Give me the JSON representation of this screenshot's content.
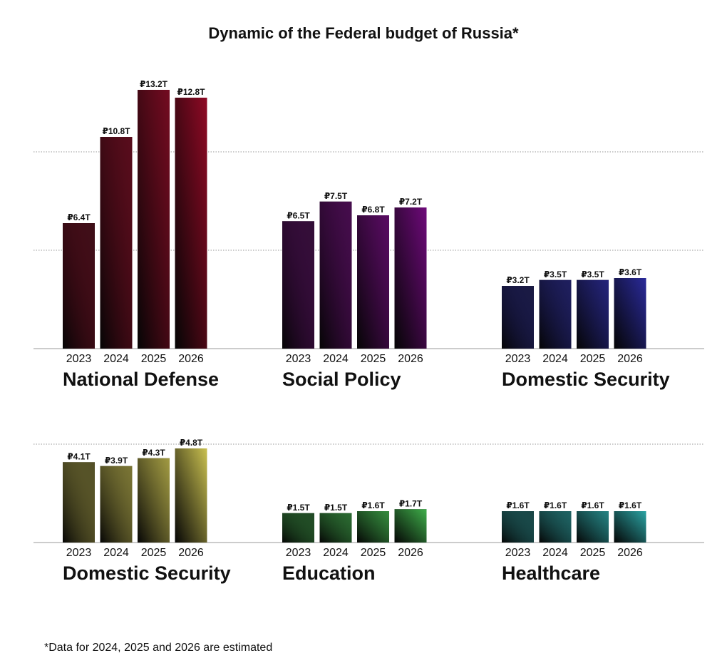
{
  "title": "Dynamic of the Federal budget of Russia*",
  "footnote": "*Data for 2024, 2025 and 2026 are estimated",
  "chart_data": [
    {
      "type": "bar",
      "title": "National Defense",
      "categories": [
        "2023",
        "2024",
        "2025",
        "2026"
      ],
      "values": [
        6.4,
        10.8,
        13.2,
        12.8
      ],
      "value_labels": [
        "₽6.4T",
        "₽10.8T",
        "₽13.2T",
        "₽12.8T"
      ],
      "unit": "₽ trillion",
      "color": "#8f0a25"
    },
    {
      "type": "bar",
      "title": "Social Policy",
      "categories": [
        "2023",
        "2024",
        "2025",
        "2026"
      ],
      "values": [
        6.5,
        7.5,
        6.8,
        7.2
      ],
      "value_labels": [
        "₽6.5T",
        "₽7.5T",
        "₽6.8T",
        "₽7.2T"
      ],
      "unit": "₽ trillion",
      "color": "#6e0a7a"
    },
    {
      "type": "bar",
      "title": "Domestic Security",
      "categories": [
        "2023",
        "2024",
        "2025",
        "2026"
      ],
      "values": [
        3.2,
        3.5,
        3.5,
        3.6
      ],
      "value_labels": [
        "₽3.2T",
        "₽3.5T",
        "₽3.5T",
        "₽3.6T"
      ],
      "unit": "₽ trillion",
      "color": "#2a2a9a"
    },
    {
      "type": "bar",
      "title": "Domestic Security",
      "categories": [
        "2023",
        "2024",
        "2025",
        "2026"
      ],
      "values": [
        4.1,
        3.9,
        4.3,
        4.8
      ],
      "value_labels": [
        "₽4.1T",
        "₽3.9T",
        "₽4.3T",
        "₽4.8T"
      ],
      "unit": "₽ trillion",
      "color": "#c9c050"
    },
    {
      "type": "bar",
      "title": "Education",
      "categories": [
        "2023",
        "2024",
        "2025",
        "2026"
      ],
      "values": [
        1.5,
        1.5,
        1.6,
        1.7
      ],
      "value_labels": [
        "₽1.5T",
        "₽1.5T",
        "₽1.6T",
        "₽1.7T"
      ],
      "unit": "₽ trillion",
      "color": "#3fae4a"
    },
    {
      "type": "bar",
      "title": "Healthcare",
      "categories": [
        "2023",
        "2024",
        "2025",
        "2026"
      ],
      "values": [
        1.6,
        1.6,
        1.6,
        1.6
      ],
      "value_labels": [
        "₽1.6T",
        "₽1.6T",
        "₽1.6T",
        "₽1.6T"
      ],
      "unit": "₽ trillion",
      "color": "#2aa3a3"
    }
  ]
}
